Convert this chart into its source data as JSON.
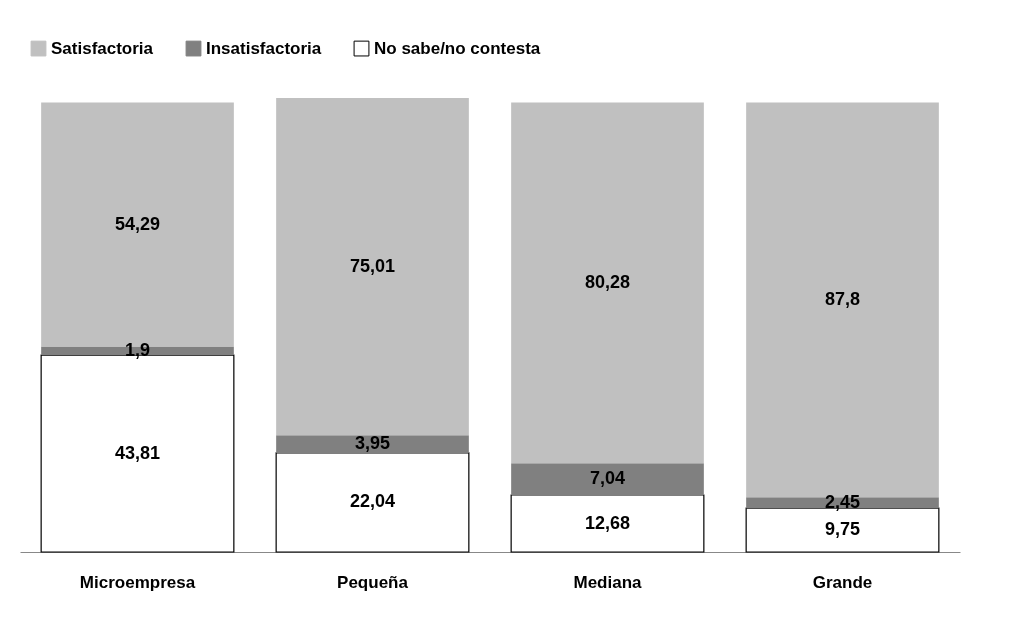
{
  "chart_data": {
    "type": "bar",
    "stacked": true,
    "legend": "top",
    "grid": false,
    "categories": [
      "Microempresa",
      "Pequeña",
      "Mediana",
      "Grande"
    ],
    "series": [
      {
        "name": "No sabe/no contesta",
        "color": "#ffffff",
        "values": [
          43.81,
          22.04,
          12.68,
          9.75
        ],
        "value_labels": [
          "43,81",
          "22,04",
          "12,68",
          "9,75"
        ]
      },
      {
        "name": "Insatisfactoria",
        "color": "#808080",
        "values": [
          1.9,
          3.95,
          7.04,
          2.45
        ],
        "value_labels": [
          "1,9",
          "3,95",
          "7,04",
          "2,45"
        ]
      },
      {
        "name": "Satisfactoria",
        "color": "#c0c0c0",
        "values": [
          54.29,
          75.01,
          80.28,
          87.8
        ],
        "value_labels": [
          "54,29",
          "75,01",
          "80,28",
          "87,8"
        ]
      }
    ]
  }
}
